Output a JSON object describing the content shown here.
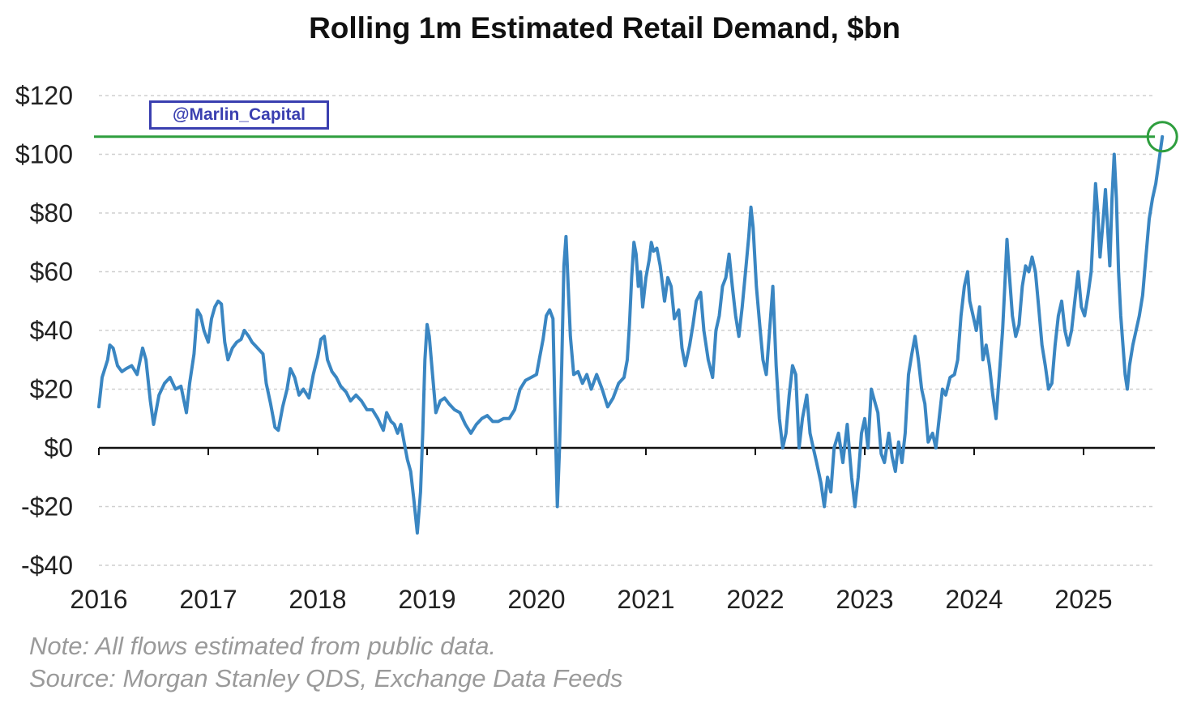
{
  "chart_data": {
    "type": "line",
    "title": "Rolling 1m Estimated Retail Demand, $bn",
    "xlabel": "",
    "ylabel": "",
    "xlim": [
      2016.0,
      2025.75
    ],
    "ylim": [
      -40,
      120
    ],
    "y_ticks": [
      {
        "value": 120,
        "label": "$120"
      },
      {
        "value": 100,
        "label": "$100"
      },
      {
        "value": 80,
        "label": "$80"
      },
      {
        "value": 60,
        "label": "$60"
      },
      {
        "value": 40,
        "label": "$40"
      },
      {
        "value": 20,
        "label": "$20"
      },
      {
        "value": 0,
        "label": "$0"
      },
      {
        "value": -20,
        "label": "-$20"
      },
      {
        "value": -40,
        "label": "-$40"
      }
    ],
    "x_ticks": [
      {
        "value": 2016,
        "label": "2016"
      },
      {
        "value": 2017,
        "label": "2017"
      },
      {
        "value": 2018,
        "label": "2018"
      },
      {
        "value": 2019,
        "label": "2019"
      },
      {
        "value": 2020,
        "label": "2020"
      },
      {
        "value": 2021,
        "label": "2021"
      },
      {
        "value": 2022,
        "label": "2022"
      },
      {
        "value": 2023,
        "label": "2023"
      },
      {
        "value": 2024,
        "label": "2024"
      },
      {
        "value": 2025,
        "label": "2025"
      }
    ],
    "grid": "horizontal dashed",
    "reference_line": {
      "y": 106,
      "color": "#2e9e3e"
    },
    "highlight_point": {
      "x": 2025.72,
      "y": 106,
      "color": "#2e9e3e"
    },
    "series": [
      {
        "color": "#3a86c2",
        "points": [
          [
            2016.0,
            14
          ],
          [
            2016.03,
            24
          ],
          [
            2016.08,
            30
          ],
          [
            2016.1,
            35
          ],
          [
            2016.13,
            34
          ],
          [
            2016.17,
            28
          ],
          [
            2016.21,
            26
          ],
          [
            2016.25,
            27
          ],
          [
            2016.3,
            28
          ],
          [
            2016.35,
            25
          ],
          [
            2016.4,
            34
          ],
          [
            2016.43,
            30
          ],
          [
            2016.47,
            16
          ],
          [
            2016.5,
            8
          ],
          [
            2016.55,
            18
          ],
          [
            2016.6,
            22
          ],
          [
            2016.65,
            24
          ],
          [
            2016.7,
            20
          ],
          [
            2016.75,
            21
          ],
          [
            2016.8,
            12
          ],
          [
            2016.83,
            22
          ],
          [
            2016.87,
            32
          ],
          [
            2016.9,
            47
          ],
          [
            2016.93,
            45
          ],
          [
            2016.96,
            40
          ],
          [
            2017.0,
            36
          ],
          [
            2017.03,
            44
          ],
          [
            2017.06,
            48
          ],
          [
            2017.09,
            50
          ],
          [
            2017.12,
            49
          ],
          [
            2017.15,
            36
          ],
          [
            2017.18,
            30
          ],
          [
            2017.22,
            34
          ],
          [
            2017.26,
            36
          ],
          [
            2017.3,
            37
          ],
          [
            2017.33,
            40
          ],
          [
            2017.37,
            38
          ],
          [
            2017.4,
            36
          ],
          [
            2017.45,
            34
          ],
          [
            2017.5,
            32
          ],
          [
            2017.53,
            22
          ],
          [
            2017.57,
            15
          ],
          [
            2017.61,
            7
          ],
          [
            2017.64,
            6
          ],
          [
            2017.68,
            14
          ],
          [
            2017.72,
            20
          ],
          [
            2017.75,
            27
          ],
          [
            2017.79,
            24
          ],
          [
            2017.83,
            18
          ],
          [
            2017.87,
            20
          ],
          [
            2017.92,
            17
          ],
          [
            2017.96,
            25
          ],
          [
            2018.0,
            31
          ],
          [
            2018.03,
            37
          ],
          [
            2018.06,
            38
          ],
          [
            2018.09,
            30
          ],
          [
            2018.13,
            26
          ],
          [
            2018.17,
            24
          ],
          [
            2018.21,
            21
          ],
          [
            2018.26,
            19
          ],
          [
            2018.3,
            16
          ],
          [
            2018.35,
            18
          ],
          [
            2018.4,
            16
          ],
          [
            2018.45,
            13
          ],
          [
            2018.5,
            13
          ],
          [
            2018.55,
            10
          ],
          [
            2018.6,
            6
          ],
          [
            2018.63,
            12
          ],
          [
            2018.67,
            9
          ],
          [
            2018.7,
            8
          ],
          [
            2018.73,
            5
          ],
          [
            2018.76,
            8
          ],
          [
            2018.79,
            2
          ],
          [
            2018.82,
            -4
          ],
          [
            2018.85,
            -8
          ],
          [
            2018.88,
            -18
          ],
          [
            2018.91,
            -29
          ],
          [
            2018.94,
            -15
          ],
          [
            2018.96,
            5
          ],
          [
            2018.98,
            30
          ],
          [
            2019.0,
            42
          ],
          [
            2019.02,
            38
          ],
          [
            2019.05,
            25
          ],
          [
            2019.08,
            12
          ],
          [
            2019.12,
            16
          ],
          [
            2019.16,
            17
          ],
          [
            2019.2,
            15
          ],
          [
            2019.25,
            13
          ],
          [
            2019.3,
            12
          ],
          [
            2019.35,
            8
          ],
          [
            2019.4,
            5
          ],
          [
            2019.45,
            8
          ],
          [
            2019.5,
            10
          ],
          [
            2019.55,
            11
          ],
          [
            2019.6,
            9
          ],
          [
            2019.65,
            9
          ],
          [
            2019.7,
            10
          ],
          [
            2019.75,
            10
          ],
          [
            2019.8,
            13
          ],
          [
            2019.85,
            20
          ],
          [
            2019.9,
            23
          ],
          [
            2019.95,
            24
          ],
          [
            2020.0,
            25
          ],
          [
            2020.03,
            31
          ],
          [
            2020.06,
            37
          ],
          [
            2020.09,
            45
          ],
          [
            2020.12,
            47
          ],
          [
            2020.15,
            44
          ],
          [
            2020.17,
            10
          ],
          [
            2020.19,
            -20
          ],
          [
            2020.21,
            0
          ],
          [
            2020.23,
            28
          ],
          [
            2020.25,
            62
          ],
          [
            2020.27,
            72
          ],
          [
            2020.29,
            55
          ],
          [
            2020.31,
            38
          ],
          [
            2020.34,
            25
          ],
          [
            2020.38,
            26
          ],
          [
            2020.42,
            22
          ],
          [
            2020.46,
            25
          ],
          [
            2020.5,
            20
          ],
          [
            2020.55,
            25
          ],
          [
            2020.6,
            20
          ],
          [
            2020.65,
            14
          ],
          [
            2020.7,
            17
          ],
          [
            2020.75,
            22
          ],
          [
            2020.8,
            24
          ],
          [
            2020.83,
            30
          ],
          [
            2020.85,
            42
          ],
          [
            2020.87,
            58
          ],
          [
            2020.89,
            70
          ],
          [
            2020.91,
            66
          ],
          [
            2020.93,
            55
          ],
          [
            2020.95,
            60
          ],
          [
            2020.97,
            48
          ],
          [
            2021.0,
            58
          ],
          [
            2021.03,
            64
          ],
          [
            2021.05,
            70
          ],
          [
            2021.07,
            67
          ],
          [
            2021.1,
            68
          ],
          [
            2021.13,
            62
          ],
          [
            2021.17,
            50
          ],
          [
            2021.2,
            58
          ],
          [
            2021.23,
            55
          ],
          [
            2021.26,
            44
          ],
          [
            2021.3,
            47
          ],
          [
            2021.33,
            34
          ],
          [
            2021.36,
            28
          ],
          [
            2021.4,
            35
          ],
          [
            2021.43,
            42
          ],
          [
            2021.46,
            50
          ],
          [
            2021.5,
            53
          ],
          [
            2021.53,
            40
          ],
          [
            2021.57,
            30
          ],
          [
            2021.61,
            24
          ],
          [
            2021.64,
            40
          ],
          [
            2021.67,
            45
          ],
          [
            2021.7,
            55
          ],
          [
            2021.73,
            58
          ],
          [
            2021.76,
            66
          ],
          [
            2021.79,
            55
          ],
          [
            2021.82,
            45
          ],
          [
            2021.85,
            38
          ],
          [
            2021.88,
            48
          ],
          [
            2021.91,
            60
          ],
          [
            2021.94,
            72
          ],
          [
            2021.96,
            82
          ],
          [
            2021.98,
            75
          ],
          [
            2022.01,
            55
          ],
          [
            2022.04,
            42
          ],
          [
            2022.07,
            30
          ],
          [
            2022.1,
            25
          ],
          [
            2022.13,
            40
          ],
          [
            2022.16,
            55
          ],
          [
            2022.19,
            28
          ],
          [
            2022.22,
            10
          ],
          [
            2022.25,
            0
          ],
          [
            2022.28,
            5
          ],
          [
            2022.31,
            18
          ],
          [
            2022.34,
            28
          ],
          [
            2022.37,
            25
          ],
          [
            2022.4,
            0
          ],
          [
            2022.43,
            10
          ],
          [
            2022.47,
            18
          ],
          [
            2022.5,
            5
          ],
          [
            2022.53,
            0
          ],
          [
            2022.56,
            -5
          ],
          [
            2022.6,
            -12
          ],
          [
            2022.63,
            -20
          ],
          [
            2022.66,
            -10
          ],
          [
            2022.69,
            -15
          ],
          [
            2022.72,
            0
          ],
          [
            2022.76,
            5
          ],
          [
            2022.8,
            -5
          ],
          [
            2022.84,
            8
          ],
          [
            2022.88,
            -10
          ],
          [
            2022.91,
            -20
          ],
          [
            2022.94,
            -10
          ],
          [
            2022.97,
            5
          ],
          [
            2023.0,
            10
          ],
          [
            2023.03,
            0
          ],
          [
            2023.06,
            20
          ],
          [
            2023.09,
            16
          ],
          [
            2023.12,
            12
          ],
          [
            2023.15,
            -2
          ],
          [
            2023.18,
            -5
          ],
          [
            2023.22,
            5
          ],
          [
            2023.25,
            -3
          ],
          [
            2023.28,
            -8
          ],
          [
            2023.31,
            2
          ],
          [
            2023.34,
            -5
          ],
          [
            2023.37,
            5
          ],
          [
            2023.4,
            25
          ],
          [
            2023.43,
            32
          ],
          [
            2023.46,
            38
          ],
          [
            2023.49,
            30
          ],
          [
            2023.52,
            20
          ],
          [
            2023.55,
            15
          ],
          [
            2023.58,
            2
          ],
          [
            2023.62,
            5
          ],
          [
            2023.65,
            0
          ],
          [
            2023.68,
            10
          ],
          [
            2023.71,
            20
          ],
          [
            2023.74,
            18
          ],
          [
            2023.78,
            24
          ],
          [
            2023.82,
            25
          ],
          [
            2023.85,
            30
          ],
          [
            2023.88,
            45
          ],
          [
            2023.91,
            55
          ],
          [
            2023.94,
            60
          ],
          [
            2023.96,
            50
          ],
          [
            2023.99,
            45
          ],
          [
            2024.02,
            40
          ],
          [
            2024.05,
            48
          ],
          [
            2024.08,
            30
          ],
          [
            2024.11,
            35
          ],
          [
            2024.14,
            28
          ],
          [
            2024.17,
            18
          ],
          [
            2024.2,
            10
          ],
          [
            2024.23,
            25
          ],
          [
            2024.26,
            40
          ],
          [
            2024.28,
            55
          ],
          [
            2024.3,
            71
          ],
          [
            2024.32,
            60
          ],
          [
            2024.35,
            45
          ],
          [
            2024.38,
            38
          ],
          [
            2024.41,
            42
          ],
          [
            2024.44,
            55
          ],
          [
            2024.47,
            62
          ],
          [
            2024.5,
            60
          ],
          [
            2024.53,
            65
          ],
          [
            2024.56,
            60
          ],
          [
            2024.59,
            48
          ],
          [
            2024.62,
            35
          ],
          [
            2024.65,
            28
          ],
          [
            2024.68,
            20
          ],
          [
            2024.71,
            22
          ],
          [
            2024.74,
            35
          ],
          [
            2024.77,
            45
          ],
          [
            2024.8,
            50
          ],
          [
            2024.83,
            40
          ],
          [
            2024.86,
            35
          ],
          [
            2024.89,
            40
          ],
          [
            2024.92,
            50
          ],
          [
            2024.95,
            60
          ],
          [
            2024.98,
            48
          ],
          [
            2025.01,
            45
          ],
          [
            2025.04,
            52
          ],
          [
            2025.07,
            60
          ],
          [
            2025.09,
            75
          ],
          [
            2025.11,
            90
          ],
          [
            2025.13,
            80
          ],
          [
            2025.15,
            65
          ],
          [
            2025.18,
            78
          ],
          [
            2025.2,
            88
          ],
          [
            2025.22,
            75
          ],
          [
            2025.24,
            62
          ],
          [
            2025.26,
            85
          ],
          [
            2025.28,
            100
          ],
          [
            2025.3,
            85
          ],
          [
            2025.32,
            60
          ],
          [
            2025.34,
            45
          ],
          [
            2025.36,
            35
          ],
          [
            2025.38,
            25
          ],
          [
            2025.4,
            20
          ],
          [
            2025.42,
            28
          ],
          [
            2025.45,
            35
          ],
          [
            2025.48,
            40
          ],
          [
            2025.51,
            45
          ],
          [
            2025.54,
            52
          ],
          [
            2025.57,
            65
          ],
          [
            2025.6,
            78
          ],
          [
            2025.63,
            85
          ],
          [
            2025.66,
            90
          ],
          [
            2025.69,
            98
          ],
          [
            2025.72,
            106
          ]
        ]
      }
    ]
  },
  "watermark": "@Marlin_Capital",
  "note": "Note:  All flows estimated from public data.",
  "source": "Source: Morgan Stanley QDS, Exchange Data Feeds"
}
